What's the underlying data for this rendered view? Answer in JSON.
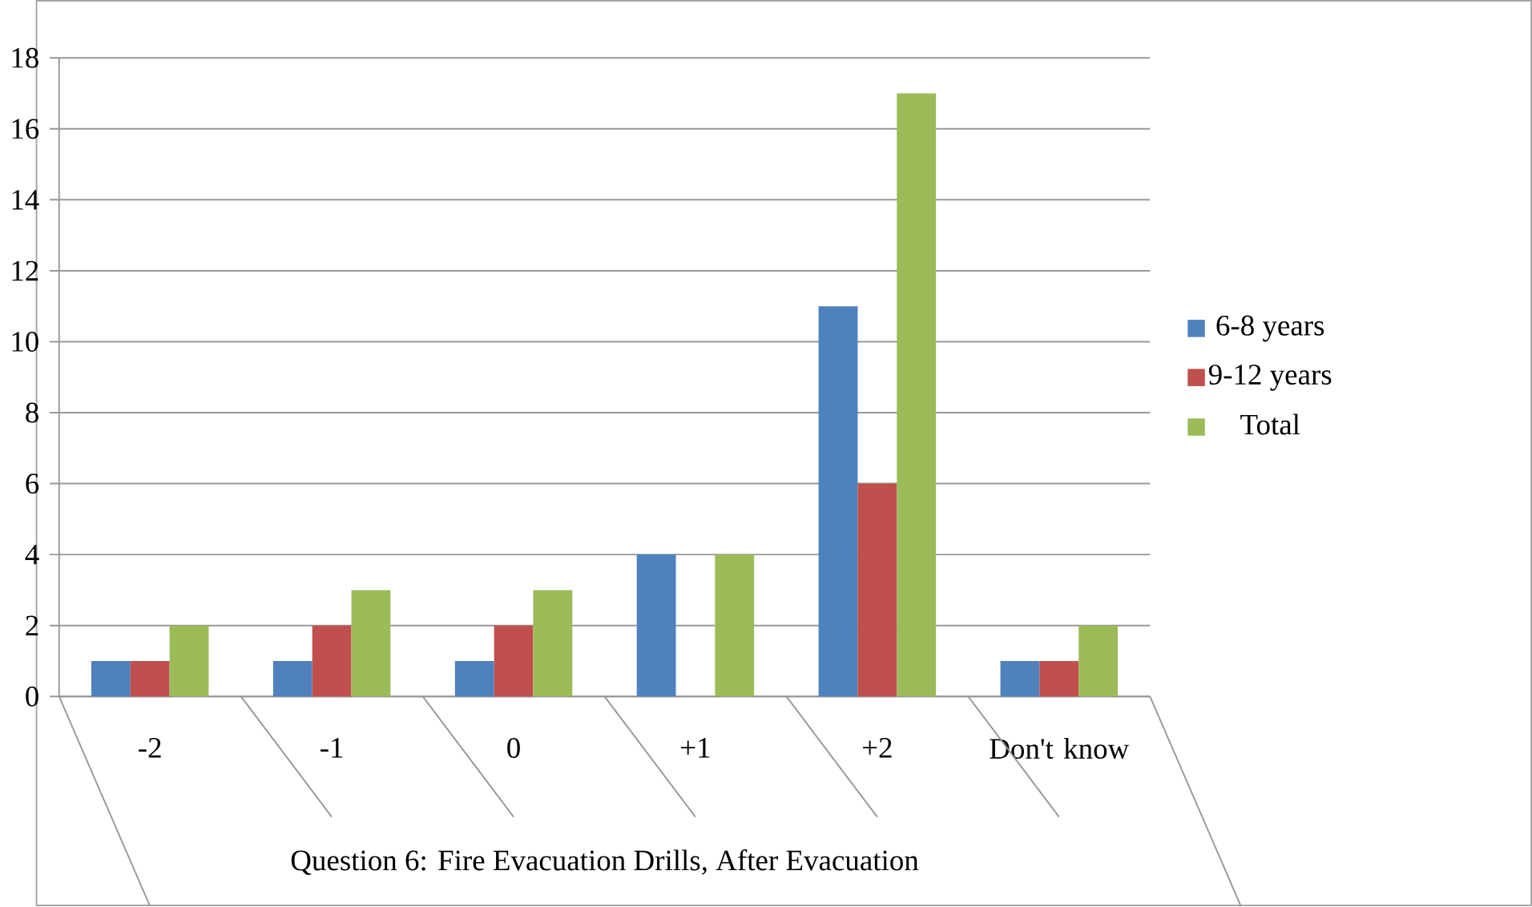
{
  "chart_data": {
    "type": "bar",
    "xlabel": "Question 6: Fire Evacuation Drills, After Evacuation",
    "categories": [
      "-2",
      "-1",
      "0",
      "+1",
      "+2",
      "Don't know"
    ],
    "series": [
      {
        "name": "6-8 years",
        "color": "#4f81bd",
        "values": [
          1,
          1,
          1,
          4,
          11,
          1
        ]
      },
      {
        "name": "9-12 years",
        "color": "#c0504d",
        "values": [
          1,
          2,
          2,
          0,
          6,
          1
        ]
      },
      {
        "name": "Total",
        "color": "#9bbb59",
        "values": [
          2,
          3,
          3,
          4,
          17,
          2
        ]
      }
    ],
    "ylim": [
      0,
      18
    ],
    "yticks": [
      0,
      2,
      4,
      6,
      8,
      10,
      12,
      14,
      16,
      18
    ],
    "grid": "y",
    "legend": "right"
  }
}
